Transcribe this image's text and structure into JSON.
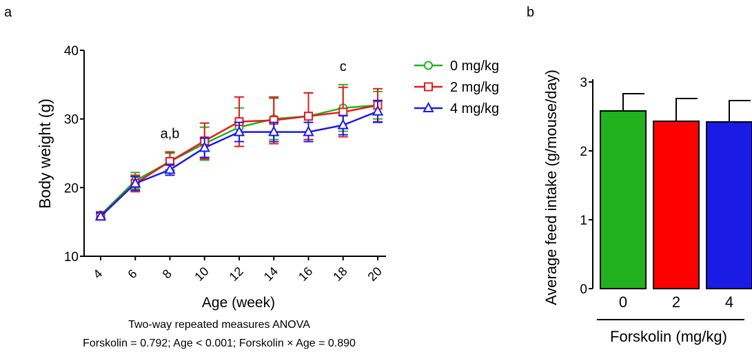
{
  "chart_data": [
    {
      "panel": "a",
      "type": "line",
      "xlabel": "Age (week)",
      "ylabel": "Body weight (g)",
      "x": [
        4,
        6,
        8,
        10,
        12,
        14,
        16,
        18,
        20
      ],
      "ylim": [
        10,
        40
      ],
      "yticks": [
        10,
        20,
        30,
        40
      ],
      "grid": false,
      "legend_position": "top-right",
      "series": [
        {
          "name": "0 mg/kg",
          "color": "#21b21e",
          "marker": "circle",
          "values": [
            16.0,
            21.0,
            23.8,
            26.4,
            28.8,
            30.0,
            30.4,
            31.6,
            32.0
          ],
          "errors": [
            0.5,
            1.2,
            1.2,
            2.4,
            2.8,
            3.0,
            3.4,
            3.4,
            2.0
          ]
        },
        {
          "name": "2 mg/kg",
          "color": "#e8191b",
          "marker": "square",
          "values": [
            15.9,
            20.6,
            23.8,
            26.8,
            29.6,
            29.8,
            30.4,
            31.0,
            32.0
          ],
          "errors": [
            0.4,
            1.2,
            1.4,
            2.6,
            3.6,
            3.4,
            3.4,
            3.6,
            2.4
          ]
        },
        {
          "name": "4 mg/kg",
          "color": "#1b1be6",
          "marker": "triangle",
          "values": [
            15.8,
            20.6,
            22.6,
            25.8,
            28.1,
            28.1,
            28.1,
            29.1,
            31.1
          ],
          "errors": [
            0.5,
            1.0,
            0.8,
            1.4,
            1.4,
            1.4,
            1.4,
            1.4,
            1.6
          ]
        }
      ],
      "annotations": [
        {
          "text": "a,b",
          "x": 8,
          "y": 27.2
        },
        {
          "text": "c",
          "x": 18,
          "y": 37.0
        }
      ],
      "stats_title": "Two-way repeated measures ANOVA",
      "stats_text": "Forskolin = 0.792; Age < 0.001; Forskolin × Age = 0.890"
    },
    {
      "panel": "b",
      "type": "bar",
      "xlabel": "Forskolin (mg/kg)",
      "ylabel": "Average feed intake (g/mouse/day)",
      "categories": [
        "0",
        "2",
        "4"
      ],
      "values": [
        2.58,
        2.43,
        2.42
      ],
      "errors": [
        0.25,
        0.33,
        0.31
      ],
      "colors": [
        "#21b21e",
        "#ff0000",
        "#1b1be6"
      ],
      "ylim": [
        0,
        3
      ],
      "yticks": [
        0,
        1,
        2,
        3
      ],
      "grid": false
    }
  ]
}
